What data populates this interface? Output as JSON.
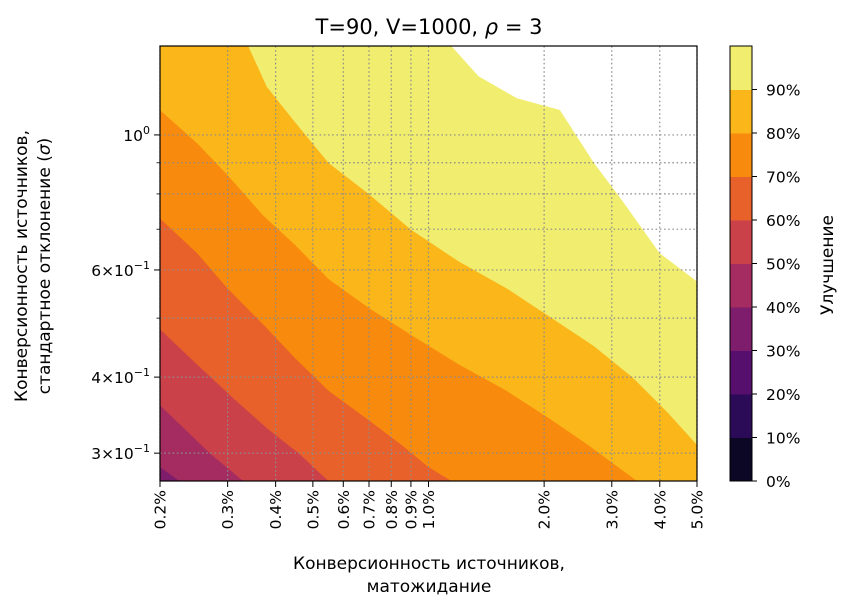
{
  "chart_data": {
    "type": "contourf",
    "title": "T=90, V=1000, ρ = 3",
    "xlabel": [
      "Конверсионность источников,",
      "матожидание"
    ],
    "ylabel": [
      "Конверсионность источников,",
      "стандартное отклонение (σ)"
    ],
    "x_scale": "log",
    "y_scale": "log",
    "xlim": [
      0.002,
      0.05
    ],
    "ylim": [
      0.27,
      1.4
    ],
    "grid": true,
    "x_ticks": [
      {
        "value": 0.002,
        "label": "0.2%"
      },
      {
        "value": 0.003,
        "label": "0.3%"
      },
      {
        "value": 0.004,
        "label": "0.4%"
      },
      {
        "value": 0.005,
        "label": "0.5%"
      },
      {
        "value": 0.006,
        "label": "0.6%"
      },
      {
        "value": 0.007,
        "label": "0.7%"
      },
      {
        "value": 0.008,
        "label": "0.8%"
      },
      {
        "value": 0.009,
        "label": "0.9%"
      },
      {
        "value": 0.01,
        "label": "1.0%"
      },
      {
        "value": 0.02,
        "label": "2.0%"
      },
      {
        "value": 0.03,
        "label": "3.0%"
      },
      {
        "value": 0.04,
        "label": "4.0%"
      },
      {
        "value": 0.05,
        "label": "5.0%"
      }
    ],
    "y_major_ticks": [
      {
        "value": 0.3,
        "base": "3×10",
        "exp": "−1"
      },
      {
        "value": 0.4,
        "base": "4×10",
        "exp": "−1"
      },
      {
        "value": 0.6,
        "base": "6×10",
        "exp": "−1"
      },
      {
        "value": 1.0,
        "base": "10",
        "exp": "0"
      }
    ],
    "y_minor_ticks": [
      0.5,
      0.7,
      0.8,
      0.9
    ],
    "colorbar": {
      "label": "Улучшение",
      "levels": [
        "0%",
        "10%",
        "20%",
        "30%",
        "40%",
        "50%",
        "60%",
        "70%",
        "80%",
        "90%"
      ],
      "colors": [
        "#0b0724",
        "#2b0b57",
        "#560f6d",
        "#7d1d6c",
        "#a42c60",
        "#cb4149",
        "#e8602a",
        "#f88a0d",
        "#fbb61a",
        "#f1ed6f"
      ]
    },
    "contour_boundaries": [
      {
        "level": "40%",
        "points": [
          [
            0.002,
            0.285
          ],
          [
            0.00225,
            0.27
          ]
        ]
      },
      {
        "level": "50%",
        "points": [
          [
            0.002,
            0.36
          ],
          [
            0.0027,
            0.3
          ],
          [
            0.0033,
            0.27
          ]
        ]
      },
      {
        "level": "60%",
        "points": [
          [
            0.002,
            0.48
          ],
          [
            0.0025,
            0.42
          ],
          [
            0.0031,
            0.37
          ],
          [
            0.0038,
            0.33
          ],
          [
            0.0046,
            0.3
          ],
          [
            0.0055,
            0.27
          ]
        ]
      },
      {
        "level": "70%",
        "points": [
          [
            0.002,
            0.73
          ],
          [
            0.0025,
            0.64
          ],
          [
            0.003,
            0.56
          ],
          [
            0.0037,
            0.49
          ],
          [
            0.0045,
            0.43
          ],
          [
            0.0055,
            0.38
          ],
          [
            0.007,
            0.34
          ],
          [
            0.0085,
            0.31
          ],
          [
            0.01,
            0.285
          ],
          [
            0.0115,
            0.27
          ]
        ]
      },
      {
        "level": "80%",
        "points": [
          [
            0.002,
            1.1
          ],
          [
            0.0025,
            0.97
          ],
          [
            0.003,
            0.86
          ],
          [
            0.0037,
            0.74
          ],
          [
            0.0045,
            0.66
          ],
          [
            0.0055,
            0.58
          ],
          [
            0.007,
            0.52
          ],
          [
            0.009,
            0.47
          ],
          [
            0.012,
            0.42
          ],
          [
            0.016,
            0.38
          ],
          [
            0.021,
            0.34
          ],
          [
            0.026,
            0.31
          ],
          [
            0.03,
            0.29
          ],
          [
            0.035,
            0.27
          ]
        ]
      },
      {
        "level": "90%",
        "points": [
          [
            0.0034,
            1.4
          ],
          [
            0.0038,
            1.2
          ],
          [
            0.0045,
            1.05
          ],
          [
            0.0055,
            0.9
          ],
          [
            0.007,
            0.8
          ],
          [
            0.009,
            0.7
          ],
          [
            0.012,
            0.62
          ],
          [
            0.016,
            0.56
          ],
          [
            0.021,
            0.5
          ],
          [
            0.027,
            0.45
          ],
          [
            0.034,
            0.4
          ],
          [
            0.042,
            0.35
          ],
          [
            0.05,
            0.31
          ]
        ]
      },
      {
        "level": "100%",
        "points": [
          [
            0.0115,
            1.4
          ],
          [
            0.0135,
            1.25
          ],
          [
            0.017,
            1.15
          ],
          [
            0.022,
            1.1
          ],
          [
            0.027,
            0.9
          ],
          [
            0.032,
            0.78
          ],
          [
            0.04,
            0.64
          ],
          [
            0.05,
            0.575
          ]
        ]
      }
    ]
  }
}
